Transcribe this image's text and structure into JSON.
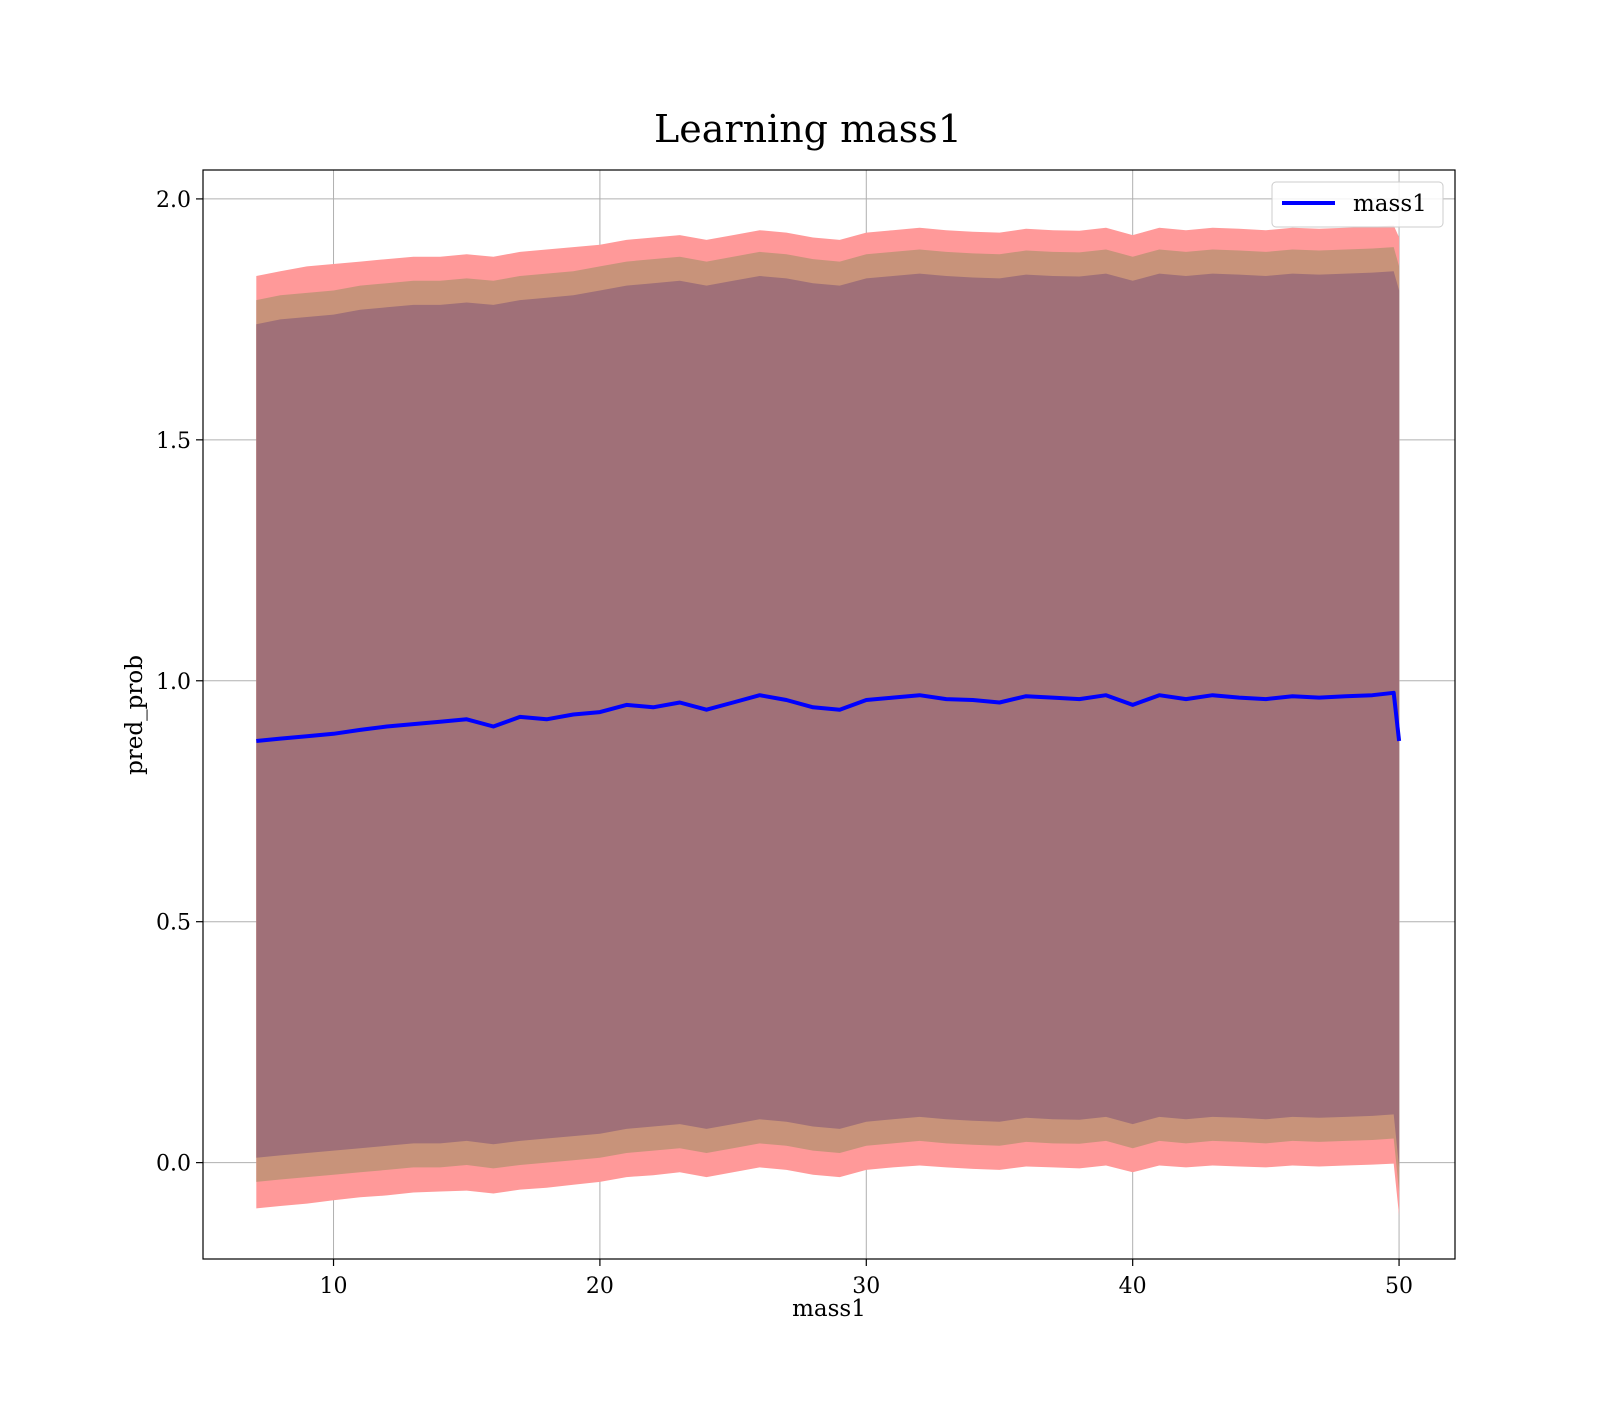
{
  "chart_data": {
    "type": "line",
    "title": "Learning mass1",
    "xlabel": "mass1",
    "ylabel": "pred_prob",
    "xlim": [
      5.1,
      52.1
    ],
    "ylim": [
      -0.2,
      2.06
    ],
    "xticks": [
      10,
      20,
      30,
      40,
      50
    ],
    "xtick_labels": [
      "10",
      "20",
      "30",
      "40",
      "50"
    ],
    "yticks": [
      0.0,
      0.5,
      1.0,
      1.5,
      2.0
    ],
    "ytick_labels": [
      "0.0",
      "0.5",
      "1.0",
      "1.5",
      "2.0"
    ],
    "grid": true,
    "legend": {
      "position": "top-right",
      "entries": [
        "mass1"
      ]
    },
    "colors": {
      "line": "#0000ff",
      "outer_band": "#ff9999",
      "middle_band": "#c8937a",
      "inner_band": "#a07078",
      "grid": "#b0b0b0"
    },
    "series": [
      {
        "name": "mass1",
        "x": [
          7.1,
          8,
          9,
          10,
          11,
          12,
          13,
          14,
          15,
          16,
          17,
          18,
          19,
          20,
          21,
          22,
          23,
          24,
          25,
          26,
          27,
          28,
          29,
          30,
          31,
          32,
          33,
          34,
          35,
          36,
          37,
          38,
          39,
          40,
          41,
          42,
          43,
          44,
          45,
          46,
          47,
          48,
          49,
          49.8,
          50
        ],
        "y": [
          0.875,
          0.88,
          0.885,
          0.89,
          0.898,
          0.905,
          0.91,
          0.915,
          0.92,
          0.905,
          0.925,
          0.92,
          0.93,
          0.935,
          0.95,
          0.945,
          0.955,
          0.94,
          0.955,
          0.97,
          0.96,
          0.945,
          0.94,
          0.96,
          0.965,
          0.97,
          0.962,
          0.96,
          0.955,
          0.968,
          0.965,
          0.962,
          0.97,
          0.95,
          0.97,
          0.962,
          0.97,
          0.965,
          0.962,
          0.968,
          0.965,
          0.968,
          0.97,
          0.975,
          0.875
        ]
      }
    ],
    "bands": {
      "outer_upper": [
        1.84,
        1.85,
        1.86,
        1.865,
        1.87,
        1.875,
        1.88,
        1.88,
        1.885,
        1.88,
        1.89,
        1.895,
        1.9,
        1.905,
        1.915,
        1.92,
        1.925,
        1.915,
        1.925,
        1.935,
        1.93,
        1.92,
        1.915,
        1.93,
        1.935,
        1.94,
        1.935,
        1.932,
        1.93,
        1.938,
        1.935,
        1.934,
        1.94,
        1.925,
        1.94,
        1.935,
        1.94,
        1.938,
        1.935,
        1.94,
        1.938,
        1.94,
        1.942,
        1.945,
        1.92
      ],
      "mid_upper": [
        1.79,
        1.8,
        1.805,
        1.81,
        1.82,
        1.825,
        1.83,
        1.83,
        1.835,
        1.83,
        1.84,
        1.845,
        1.85,
        1.86,
        1.87,
        1.875,
        1.88,
        1.87,
        1.88,
        1.89,
        1.885,
        1.875,
        1.87,
        1.885,
        1.89,
        1.895,
        1.89,
        1.887,
        1.885,
        1.893,
        1.89,
        1.889,
        1.895,
        1.88,
        1.895,
        1.89,
        1.895,
        1.893,
        1.89,
        1.895,
        1.893,
        1.895,
        1.897,
        1.9,
        1.86
      ],
      "mid_lower": [
        -0.04,
        -0.035,
        -0.03,
        -0.025,
        -0.02,
        -0.015,
        -0.01,
        -0.01,
        -0.005,
        -0.012,
        -0.005,
        0.0,
        0.005,
        0.01,
        0.02,
        0.025,
        0.03,
        0.02,
        0.03,
        0.04,
        0.035,
        0.025,
        0.02,
        0.035,
        0.04,
        0.045,
        0.04,
        0.037,
        0.035,
        0.043,
        0.04,
        0.039,
        0.045,
        0.03,
        0.045,
        0.04,
        0.045,
        0.043,
        0.04,
        0.045,
        0.043,
        0.045,
        0.047,
        0.05,
        -0.06
      ],
      "outer_lower": [
        -0.095,
        -0.09,
        -0.085,
        -0.078,
        -0.072,
        -0.068,
        -0.062,
        -0.06,
        -0.058,
        -0.064,
        -0.056,
        -0.052,
        -0.046,
        -0.04,
        -0.03,
        -0.026,
        -0.02,
        -0.03,
        -0.02,
        -0.01,
        -0.015,
        -0.025,
        -0.03,
        -0.015,
        -0.01,
        -0.006,
        -0.01,
        -0.013,
        -0.015,
        -0.008,
        -0.01,
        -0.012,
        -0.006,
        -0.02,
        -0.006,
        -0.01,
        -0.006,
        -0.008,
        -0.01,
        -0.006,
        -0.008,
        -0.006,
        -0.004,
        -0.002,
        -0.11
      ]
    }
  }
}
